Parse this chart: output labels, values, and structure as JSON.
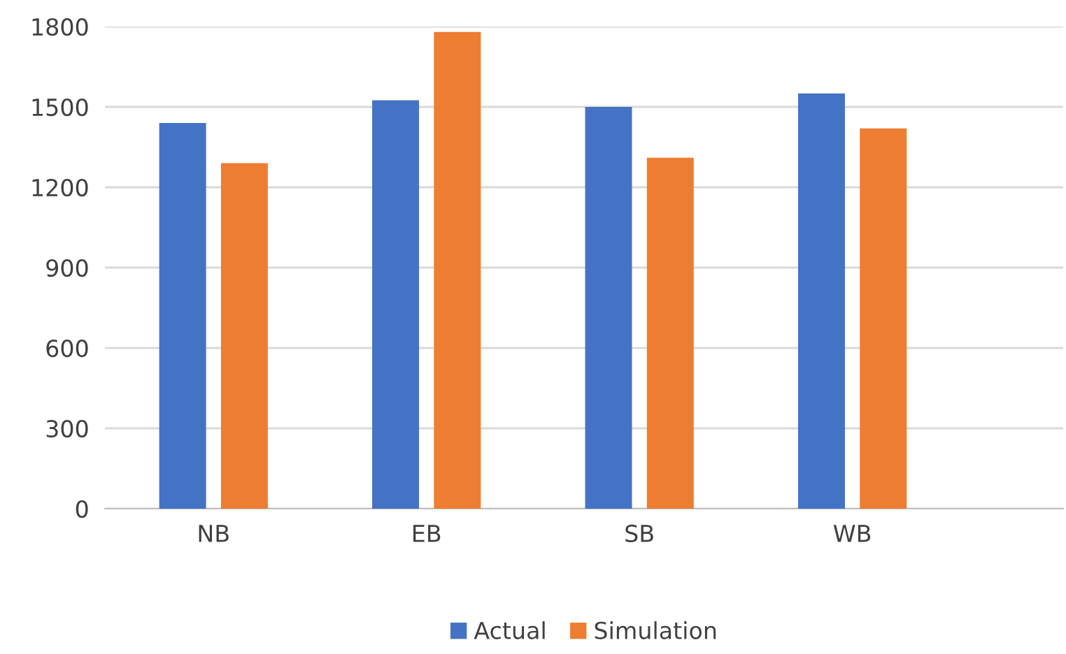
{
  "chart_data": {
    "type": "bar",
    "categories": [
      "NB",
      "EB",
      "SB",
      "WB"
    ],
    "series": [
      {
        "name": "Actual",
        "color": "#4472c4",
        "values": [
          1440,
          1525,
          1500,
          1550
        ]
      },
      {
        "name": "Simulation",
        "color": "#ed7d31",
        "values": [
          1290,
          1780,
          1310,
          1420
        ]
      }
    ],
    "ylim": [
      0,
      1800
    ],
    "yticks": [
      0,
      300,
      600,
      900,
      1200,
      1500,
      1800
    ],
    "grid": "y",
    "legend": "bottom"
  }
}
